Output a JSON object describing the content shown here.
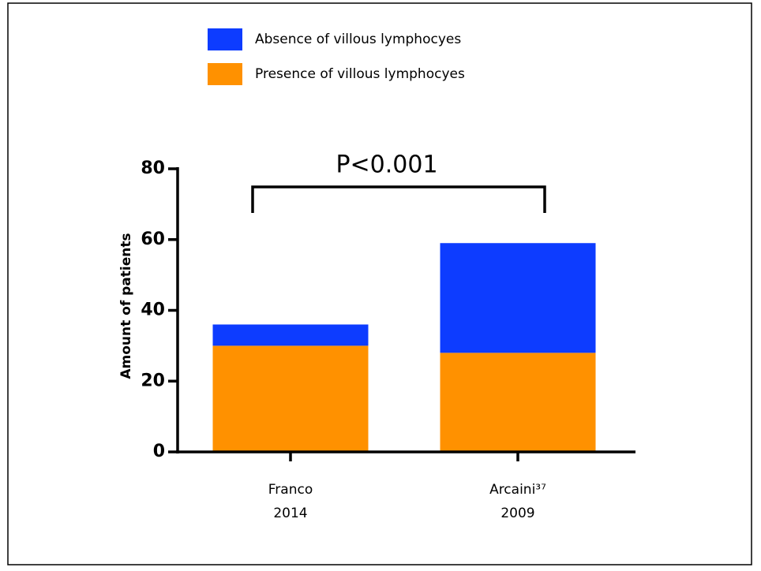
{
  "chart_data": {
    "type": "stacked_bar",
    "annotation": "P<0.001",
    "y_label": "Amount of patients",
    "categories": [
      "Franco\n2014",
      "Arcaini³⁷\n2009"
    ],
    "series": [
      {
        "name": "Presence of villous lymphocyes",
        "color": "#ff9100",
        "values": [
          30,
          28
        ]
      },
      {
        "name": "Absence of villous lymphocyes",
        "color": "#0d3cff",
        "values": [
          6,
          31
        ]
      }
    ],
    "ylim": [
      0,
      80
    ],
    "yticks": [
      0,
      20,
      40,
      60,
      80
    ]
  }
}
